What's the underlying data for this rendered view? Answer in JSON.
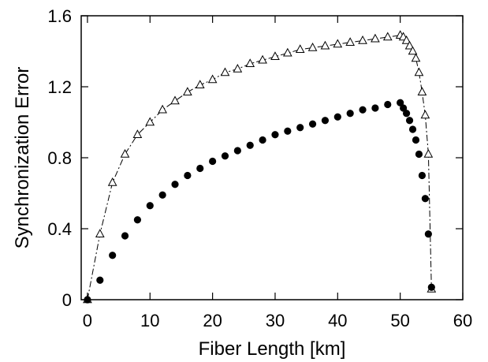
{
  "chart_data": {
    "type": "scatter",
    "title": "",
    "xlabel": "Fiber Length [km]",
    "ylabel": "Synchronization Error",
    "xlim": [
      -1,
      60
    ],
    "ylim": [
      0,
      1.6
    ],
    "xticks": [
      0,
      10,
      20,
      30,
      40,
      50,
      60
    ],
    "yticks": [
      0,
      0.4,
      0.8,
      1.2,
      1.6
    ],
    "xtick_labels": [
      "0",
      "10",
      "20",
      "30",
      "40",
      "50",
      "60"
    ],
    "ytick_labels": [
      "0",
      "0.4",
      "0.8",
      "1.2",
      "1.6"
    ],
    "grid": false,
    "legend": "none",
    "series": [
      {
        "marker": "open-triangle",
        "line": "dash-dot",
        "color": "#000000",
        "points": [
          [
            0,
            0
          ],
          [
            2,
            0.37
          ],
          [
            4,
            0.66
          ],
          [
            6,
            0.82
          ],
          [
            8,
            0.93
          ],
          [
            10,
            1.0
          ],
          [
            12,
            1.07
          ],
          [
            14,
            1.12
          ],
          [
            16,
            1.17
          ],
          [
            18,
            1.21
          ],
          [
            20,
            1.24
          ],
          [
            22,
            1.28
          ],
          [
            24,
            1.3
          ],
          [
            26,
            1.33
          ],
          [
            28,
            1.35
          ],
          [
            30,
            1.37
          ],
          [
            32,
            1.39
          ],
          [
            34,
            1.41
          ],
          [
            36,
            1.42
          ],
          [
            38,
            1.43
          ],
          [
            40,
            1.44
          ],
          [
            42,
            1.45
          ],
          [
            44,
            1.46
          ],
          [
            46,
            1.47
          ],
          [
            48,
            1.48
          ],
          [
            50,
            1.49
          ],
          [
            50.5,
            1.48
          ],
          [
            51,
            1.46
          ],
          [
            51.5,
            1.43
          ],
          [
            52,
            1.4
          ],
          [
            52.5,
            1.36
          ],
          [
            53,
            1.28
          ],
          [
            53.5,
            1.17
          ],
          [
            54,
            1.04
          ],
          [
            54.5,
            0.82
          ],
          [
            55,
            0.06
          ]
        ]
      },
      {
        "marker": "filled-circle",
        "line": "none",
        "color": "#000000",
        "points": [
          [
            0,
            0
          ],
          [
            2,
            0.11
          ],
          [
            4,
            0.25
          ],
          [
            6,
            0.36
          ],
          [
            8,
            0.45
          ],
          [
            10,
            0.53
          ],
          [
            12,
            0.59
          ],
          [
            14,
            0.65
          ],
          [
            16,
            0.7
          ],
          [
            18,
            0.74
          ],
          [
            20,
            0.78
          ],
          [
            22,
            0.81
          ],
          [
            24,
            0.84
          ],
          [
            26,
            0.87
          ],
          [
            28,
            0.9
          ],
          [
            30,
            0.93
          ],
          [
            32,
            0.95
          ],
          [
            34,
            0.97
          ],
          [
            36,
            0.99
          ],
          [
            38,
            1.01
          ],
          [
            40,
            1.03
          ],
          [
            42,
            1.05
          ],
          [
            44,
            1.07
          ],
          [
            46,
            1.08
          ],
          [
            48,
            1.1
          ],
          [
            50,
            1.11
          ],
          [
            50.5,
            1.08
          ],
          [
            51,
            1.05
          ],
          [
            51.5,
            1.01
          ],
          [
            52,
            0.96
          ],
          [
            52.5,
            0.9
          ],
          [
            53,
            0.82
          ],
          [
            53.5,
            0.7
          ],
          [
            54,
            0.57
          ],
          [
            54.5,
            0.37
          ],
          [
            55,
            0.07
          ]
        ]
      }
    ]
  }
}
